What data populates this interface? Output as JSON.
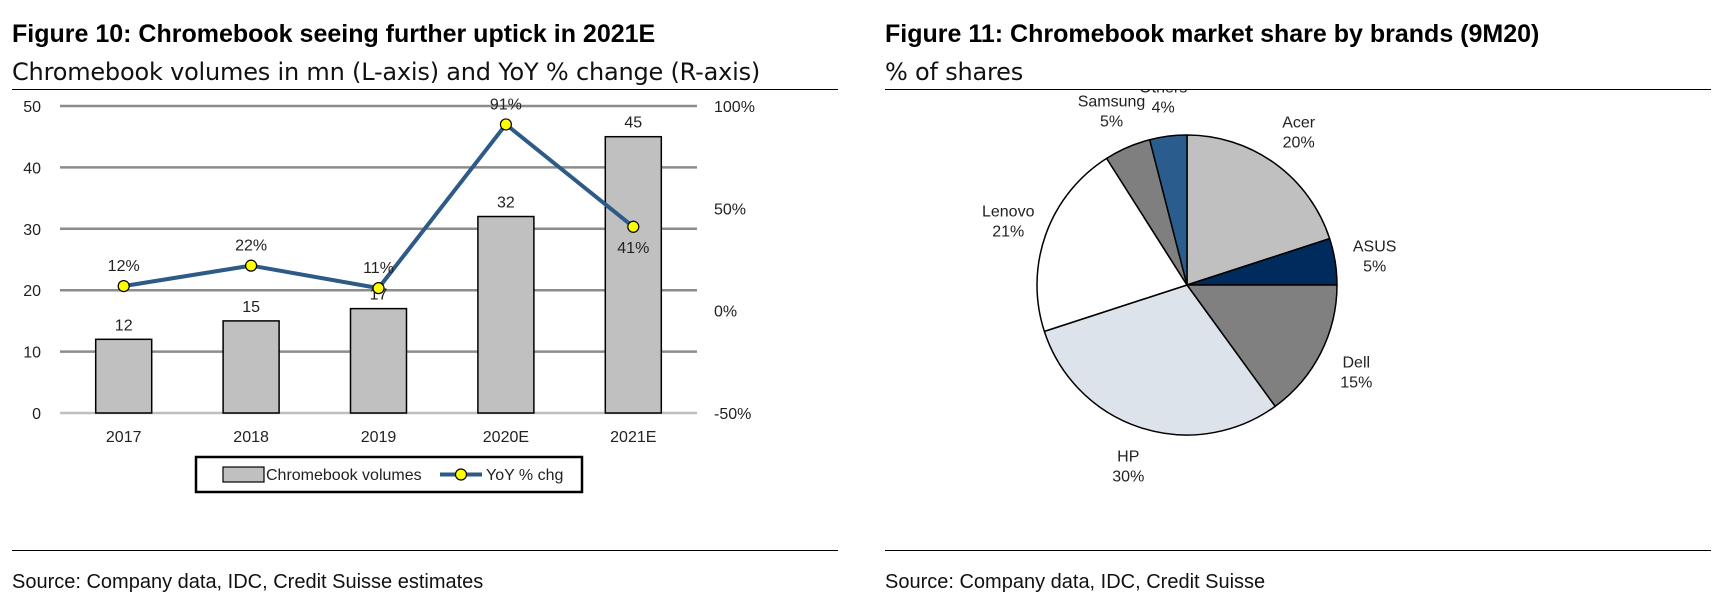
{
  "left_panel": {
    "title": "Figure 10: Chromebook seeing further uptick in 2021E",
    "subtitle": "Chromebook volumes in mn (L-axis) and YoY % change (R-axis)",
    "source": "Source: Company data, IDC, Credit Suisse estimates"
  },
  "right_panel": {
    "title": "Figure 11: Chromebook market share by brands (9M20)",
    "subtitle": "% of shares",
    "source": "Source: Company data, IDC, Credit Suisse"
  },
  "chart_data": [
    {
      "type": "bar",
      "categories": [
        "2017",
        "2018",
        "2019",
        "2020E",
        "2021E"
      ],
      "series": [
        {
          "name": "Chromebook volumes",
          "type": "bar",
          "axis": "left",
          "values": [
            12,
            15,
            17,
            32,
            45
          ],
          "labels": [
            "12",
            "15",
            "17",
            "32",
            "45"
          ],
          "color": "#c0c0c0"
        },
        {
          "name": "YoY % chg",
          "type": "line",
          "axis": "right",
          "values": [
            12,
            22,
            11,
            91,
            41
          ],
          "labels": [
            "12%",
            "22%",
            "11%",
            "91%",
            "41%"
          ],
          "color": "#2e5a87",
          "marker_color": "#ffff00"
        }
      ],
      "left_axis": {
        "ylim": [
          0,
          50
        ],
        "ticks": [
          "0",
          "10",
          "20",
          "30",
          "40",
          "50"
        ]
      },
      "right_axis": {
        "ylim": [
          -50,
          100
        ],
        "ticks": [
          "-50%",
          "0%",
          "50%",
          "100%"
        ]
      },
      "grid": true,
      "legend_position": "bottom"
    },
    {
      "type": "pie",
      "slices": [
        {
          "label": "Acer",
          "value": 20,
          "value_label": "20%",
          "color": "#c0c0c0"
        },
        {
          "label": "ASUS",
          "value": 5,
          "value_label": "5%",
          "color": "#002b5c"
        },
        {
          "label": "Dell",
          "value": 15,
          "value_label": "15%",
          "color": "#808080"
        },
        {
          "label": "HP",
          "value": 30,
          "value_label": "30%",
          "color": "#dde3ea"
        },
        {
          "label": "Lenovo",
          "value": 21,
          "value_label": "21%",
          "color": "#ffffff"
        },
        {
          "label": "Samsung",
          "value": 5,
          "value_label": "5%",
          "color": "#7f7f7f"
        },
        {
          "label": "Others",
          "value": 4,
          "value_label": "4%",
          "color": "#2a5c8e"
        }
      ]
    }
  ]
}
